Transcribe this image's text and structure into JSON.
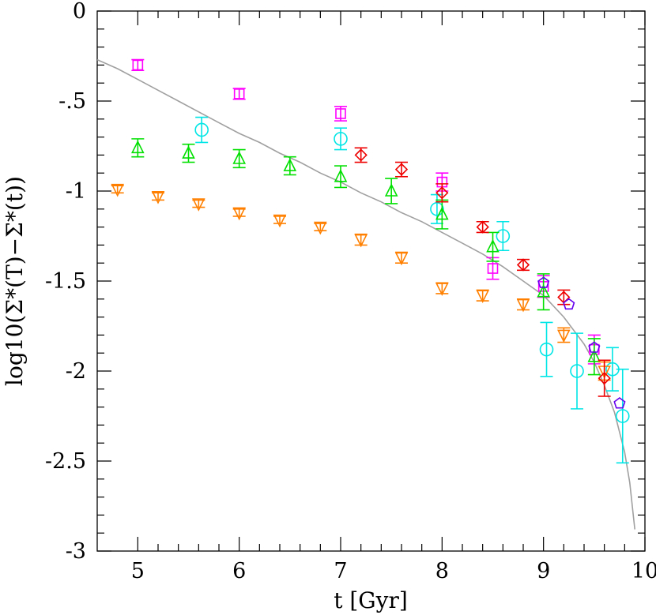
{
  "chart_data": {
    "type": "scatter",
    "xlabel": "t [Gyr]",
    "ylabel": "log10(Σ*(T)−Σ*(t))",
    "xlim": [
      4.6,
      10.0
    ],
    "ylim": [
      -3.0,
      0.0
    ],
    "x_ticks": [
      5,
      6,
      7,
      8,
      9,
      10
    ],
    "x_tick_labels": [
      "5",
      "6",
      "7",
      "8",
      "9",
      "10"
    ],
    "y_ticks": [
      0,
      -0.5,
      -1,
      -1.5,
      -2,
      -2.5,
      -3
    ],
    "y_tick_labels": [
      "0",
      "-.5",
      "-1",
      "-1.5",
      "-2",
      "-2.5",
      "-3"
    ],
    "grid": false,
    "legend": "none",
    "model_curve": {
      "color": "#a0a0a0",
      "x": [
        4.6,
        4.8,
        5.0,
        5.2,
        5.4,
        5.6,
        5.8,
        6.0,
        6.2,
        6.4,
        6.6,
        6.8,
        7.0,
        7.2,
        7.4,
        7.6,
        7.8,
        8.0,
        8.2,
        8.4,
        8.6,
        8.8,
        9.0,
        9.2,
        9.4,
        9.5,
        9.6,
        9.7,
        9.8,
        9.85,
        9.9
      ],
      "y": [
        -0.27,
        -0.32,
        -0.38,
        -0.44,
        -0.5,
        -0.56,
        -0.62,
        -0.68,
        -0.73,
        -0.79,
        -0.84,
        -0.9,
        -0.95,
        -1.01,
        -1.06,
        -1.12,
        -1.17,
        -1.23,
        -1.29,
        -1.35,
        -1.42,
        -1.5,
        -1.58,
        -1.7,
        -1.85,
        -1.95,
        -2.08,
        -2.23,
        -2.45,
        -2.62,
        -2.88
      ]
    },
    "series": [
      {
        "marker": "square",
        "color": "#ff00ff",
        "points": [
          {
            "x": 5.0,
            "y": -0.3,
            "err": 0.03
          },
          {
            "x": 6.0,
            "y": -0.46,
            "err": 0.03
          },
          {
            "x": 7.0,
            "y": -0.57,
            "err": 0.04
          },
          {
            "x": 8.0,
            "y": -0.95,
            "err": 0.05
          },
          {
            "x": 8.5,
            "y": -1.43,
            "err": 0.06
          },
          {
            "x": 9.0,
            "y": -1.53,
            "err": 0.06
          },
          {
            "x": 9.5,
            "y": -1.88,
            "err": 0.08
          }
        ]
      },
      {
        "marker": "circle",
        "color": "#00e5e5",
        "points": [
          {
            "x": 5.63,
            "y": -0.66,
            "err": 0.07
          },
          {
            "x": 7.0,
            "y": -0.71,
            "err": 0.06
          },
          {
            "x": 7.95,
            "y": -1.1,
            "err": 0.08
          },
          {
            "x": 8.6,
            "y": -1.25,
            "err": 0.08
          },
          {
            "x": 9.03,
            "y": -1.88,
            "err": 0.15
          },
          {
            "x": 9.33,
            "y": -2.0,
            "err": 0.21
          },
          {
            "x": 9.68,
            "y": -1.99,
            "err": 0.12
          },
          {
            "x": 9.78,
            "y": -2.25,
            "err": 0.26
          }
        ]
      },
      {
        "marker": "triangle-up",
        "color": "#00e000",
        "points": [
          {
            "x": 5.0,
            "y": -0.76,
            "err": 0.05
          },
          {
            "x": 5.5,
            "y": -0.79,
            "err": 0.05
          },
          {
            "x": 6.0,
            "y": -0.82,
            "err": 0.05
          },
          {
            "x": 6.5,
            "y": -0.86,
            "err": 0.05
          },
          {
            "x": 7.0,
            "y": -0.92,
            "err": 0.06
          },
          {
            "x": 7.5,
            "y": -1.0,
            "err": 0.07
          },
          {
            "x": 8.0,
            "y": -1.13,
            "err": 0.08
          },
          {
            "x": 8.5,
            "y": -1.31,
            "err": 0.08
          },
          {
            "x": 9.0,
            "y": -1.56,
            "err": 0.1
          },
          {
            "x": 9.5,
            "y": -1.92,
            "err": 0.1
          }
        ]
      },
      {
        "marker": "triangle-down",
        "color": "#ff8000",
        "points": [
          {
            "x": 4.8,
            "y": -0.99,
            "err": 0.02
          },
          {
            "x": 5.2,
            "y": -1.03,
            "err": 0.02
          },
          {
            "x": 5.6,
            "y": -1.07,
            "err": 0.02
          },
          {
            "x": 6.0,
            "y": -1.12,
            "err": 0.02
          },
          {
            "x": 6.4,
            "y": -1.16,
            "err": 0.02
          },
          {
            "x": 6.8,
            "y": -1.2,
            "err": 0.02
          },
          {
            "x": 7.2,
            "y": -1.27,
            "err": 0.03
          },
          {
            "x": 7.6,
            "y": -1.37,
            "err": 0.03
          },
          {
            "x": 8.0,
            "y": -1.54,
            "err": 0.03
          },
          {
            "x": 8.4,
            "y": -1.58,
            "err": 0.03
          },
          {
            "x": 8.8,
            "y": -1.63,
            "err": 0.03
          },
          {
            "x": 9.2,
            "y": -1.8,
            "err": 0.04
          },
          {
            "x": 9.6,
            "y": -2.0,
            "err": 0.05
          }
        ]
      },
      {
        "marker": "diamond",
        "color": "#ee0000",
        "points": [
          {
            "x": 7.2,
            "y": -0.8,
            "err": 0.04
          },
          {
            "x": 7.6,
            "y": -0.88,
            "err": 0.04
          },
          {
            "x": 8.0,
            "y": -1.01,
            "err": 0.05
          },
          {
            "x": 8.4,
            "y": -1.2,
            "err": 0.03
          },
          {
            "x": 8.8,
            "y": -1.41,
            "err": 0.03
          },
          {
            "x": 9.2,
            "y": -1.59,
            "err": 0.04
          },
          {
            "x": 9.6,
            "y": -2.04,
            "err": 0.1
          }
        ]
      },
      {
        "marker": "pentagon",
        "color": "#6600ee",
        "points": [
          {
            "x": 9.0,
            "y": -1.51,
            "err": 0.0
          },
          {
            "x": 9.25,
            "y": -1.63,
            "err": 0.0
          },
          {
            "x": 9.5,
            "y": -1.87,
            "err": 0.0
          },
          {
            "x": 9.75,
            "y": -2.18,
            "err": 0.0
          }
        ]
      }
    ]
  }
}
